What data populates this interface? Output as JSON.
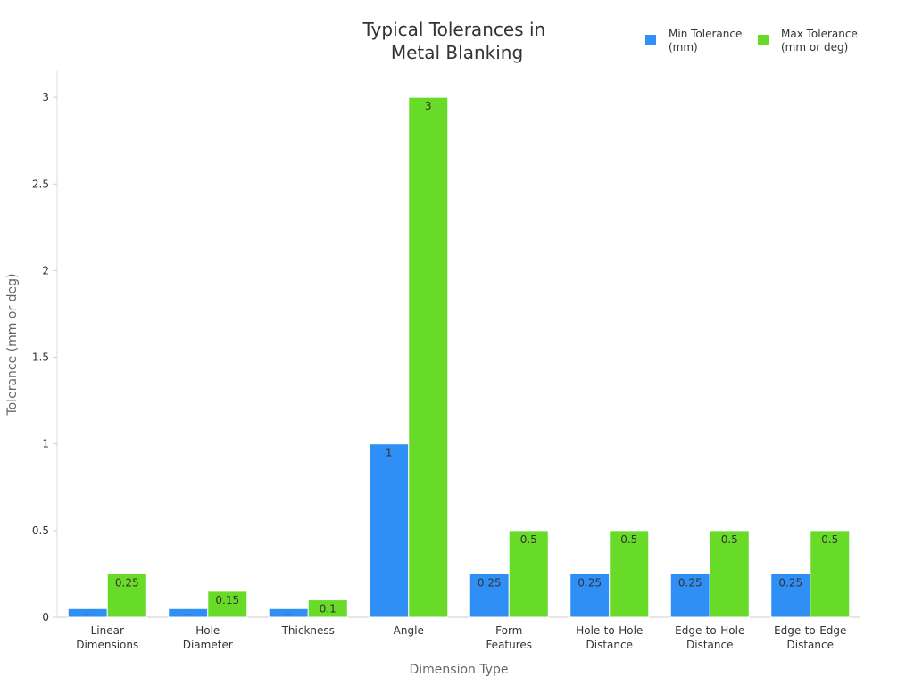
{
  "chart_data": {
    "type": "bar",
    "title_lines": [
      "Typical Tolerances in",
      "Metal Blanking"
    ],
    "xlabel": "Dimension Type",
    "ylabel": "Tolerance (mm or deg)",
    "ylim": [
      0,
      3.15
    ],
    "yticks": [
      0,
      0.5,
      1,
      1.5,
      2,
      2.5,
      3
    ],
    "categories": [
      [
        "Linear",
        "Dimensions"
      ],
      [
        "Hole",
        "Diameter"
      ],
      [
        "Thickness"
      ],
      [
        "Angle"
      ],
      [
        "Form",
        "Features"
      ],
      [
        "Hole-to-Hole",
        "Distance"
      ],
      [
        "Edge-to-Hole",
        "Distance"
      ],
      [
        "Edge-to-Edge",
        "Distance"
      ]
    ],
    "series": [
      {
        "name_lines": [
          "Min Tolerance",
          "(mm)"
        ],
        "color": "#2f8ff5",
        "values": [
          0.05,
          0.05,
          0.05,
          1,
          0.25,
          0.25,
          0.25,
          0.25
        ],
        "labels": [
          "…",
          "…",
          "…",
          "1",
          "0.25",
          "0.25",
          "0.25",
          "0.25"
        ]
      },
      {
        "name_lines": [
          "Max Tolerance",
          "(mm or deg)"
        ],
        "color": "#67db27",
        "values": [
          0.25,
          0.15,
          0.1,
          3,
          0.5,
          0.5,
          0.5,
          0.5
        ],
        "labels": [
          "0.25",
          "0.15",
          "0.1",
          "3",
          "0.5",
          "0.5",
          "0.5",
          "0.5"
        ]
      }
    ],
    "legend_position": "top-right",
    "grid": false
  }
}
